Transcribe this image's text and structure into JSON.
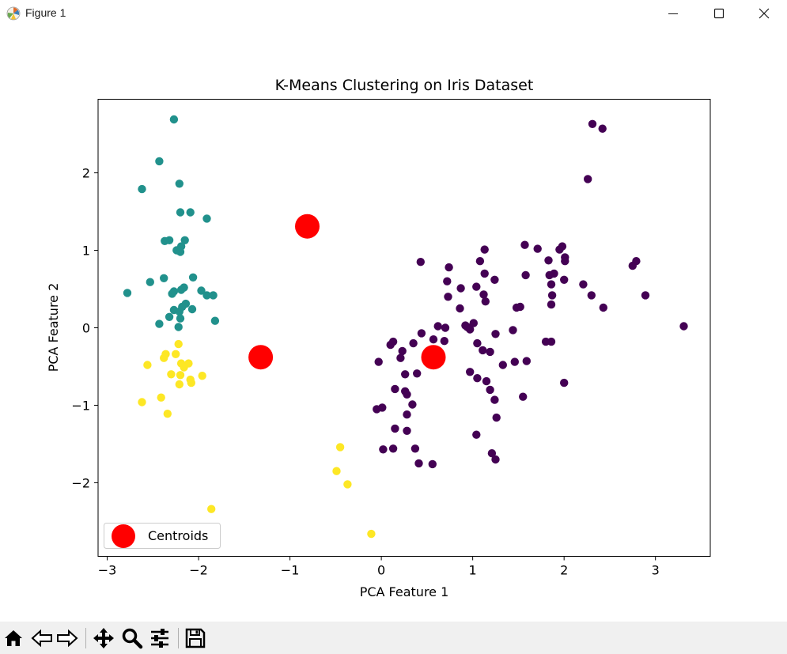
{
  "window": {
    "title": "Figure 1",
    "controls": [
      "minimize",
      "maximize",
      "close"
    ]
  },
  "toolbar": {
    "buttons": [
      "home-icon",
      "back-arrow-icon",
      "forward-arrow-icon",
      "pan-move-icon",
      "zoom-magnifier-icon",
      "configure-subplots-icon",
      "save-floppy-icon"
    ]
  },
  "chart_data": {
    "type": "scatter",
    "title": "K-Means Clustering on Iris Dataset",
    "xlabel": "PCA Feature 1",
    "ylabel": "PCA Feature 2",
    "xlim": [
      -3.1,
      3.6
    ],
    "ylim": [
      -2.95,
      2.95
    ],
    "xticks": [
      -3,
      -2,
      -1,
      0,
      1,
      2,
      3
    ],
    "yticks": [
      -2,
      -1,
      0,
      1,
      2
    ],
    "grid": false,
    "legend": {
      "position": "lower-left",
      "entries": [
        "Centroids"
      ]
    },
    "colors": {
      "cluster_0": "#440154",
      "cluster_1": "#21918c",
      "cluster_2": "#fde725",
      "centroid": "#ff0000"
    },
    "series": [
      {
        "cluster": 0,
        "color": "#440154",
        "points": [
          [
            2.31,
            2.63
          ],
          [
            2.42,
            2.57
          ],
          [
            2.26,
            1.92
          ],
          [
            1.57,
            1.07
          ],
          [
            1.98,
            1.05
          ],
          [
            1.95,
            1.01
          ],
          [
            1.71,
            1.02
          ],
          [
            1.13,
            1.01
          ],
          [
            2.01,
            0.91
          ],
          [
            2.01,
            0.86
          ],
          [
            1.83,
            0.87
          ],
          [
            1.08,
            0.86
          ],
          [
            0.43,
            0.85
          ],
          [
            2.79,
            0.86
          ],
          [
            2.75,
            0.8
          ],
          [
            0.74,
            0.78
          ],
          [
            1.13,
            0.7
          ],
          [
            1.89,
            0.7
          ],
          [
            1.84,
            0.68
          ],
          [
            1.58,
            0.68
          ],
          [
            1.24,
            0.62
          ],
          [
            2.0,
            0.62
          ],
          [
            0.72,
            0.6
          ],
          [
            1.86,
            0.56
          ],
          [
            2.21,
            0.56
          ],
          [
            1.04,
            0.53
          ],
          [
            0.87,
            0.51
          ],
          [
            1.87,
            0.42
          ],
          [
            1.12,
            0.43
          ],
          [
            2.89,
            0.42
          ],
          [
            2.3,
            0.42
          ],
          [
            0.73,
            0.4
          ],
          [
            1.14,
            0.34
          ],
          [
            1.86,
            0.3
          ],
          [
            1.52,
            0.27
          ],
          [
            1.48,
            0.26
          ],
          [
            2.43,
            0.26
          ],
          [
            0.86,
            0.25
          ],
          [
            3.31,
            0.02
          ],
          [
            1.01,
            0.06
          ],
          [
            0.62,
            0.02
          ],
          [
            0.92,
            0.03
          ],
          [
            0.94,
            0.01
          ],
          [
            0.7,
            0.0
          ],
          [
            0.97,
            -0.02
          ],
          [
            1.44,
            -0.03
          ],
          [
            0.44,
            -0.07
          ],
          [
            1.25,
            -0.08
          ],
          [
            0.57,
            -0.15
          ],
          [
            0.69,
            -0.17
          ],
          [
            0.13,
            -0.18
          ],
          [
            0.1,
            -0.22
          ],
          [
            1.05,
            -0.2
          ],
          [
            1.8,
            -0.18
          ],
          [
            1.86,
            -0.18
          ],
          [
            1.11,
            -0.29
          ],
          [
            0.35,
            -0.2
          ],
          [
            1.19,
            -0.31
          ],
          [
            0.23,
            -0.3
          ],
          [
            0.54,
            -0.38
          ],
          [
            0.21,
            -0.39
          ],
          [
            -0.03,
            -0.44
          ],
          [
            1.46,
            -0.44
          ],
          [
            1.59,
            -0.43
          ],
          [
            1.33,
            -0.48
          ],
          [
            0.26,
            -0.6
          ],
          [
            0.39,
            -0.59
          ],
          [
            0.97,
            -0.57
          ],
          [
            1.05,
            -0.65
          ],
          [
            1.15,
            -0.69
          ],
          [
            2.0,
            -0.71
          ],
          [
            0.15,
            -0.79
          ],
          [
            0.26,
            -0.82
          ],
          [
            1.19,
            -0.8
          ],
          [
            0.28,
            -0.86
          ],
          [
            1.24,
            -0.93
          ],
          [
            1.55,
            -0.89
          ],
          [
            0.34,
            -0.99
          ],
          [
            -0.05,
            -1.05
          ],
          [
            0.01,
            -1.03
          ],
          [
            0.28,
            -1.12
          ],
          [
            1.26,
            -1.16
          ],
          [
            0.15,
            -1.3
          ],
          [
            0.28,
            -1.33
          ],
          [
            1.04,
            -1.38
          ],
          [
            0.02,
            -1.57
          ],
          [
            0.13,
            -1.56
          ],
          [
            0.37,
            -1.56
          ],
          [
            1.21,
            -1.62
          ],
          [
            1.25,
            -1.7
          ],
          [
            0.41,
            -1.75
          ],
          [
            0.56,
            -1.76
          ]
        ]
      },
      {
        "cluster": 1,
        "color": "#21918c",
        "points": [
          [
            -2.27,
            2.69
          ],
          [
            -2.43,
            2.15
          ],
          [
            -2.21,
            1.86
          ],
          [
            -2.62,
            1.79
          ],
          [
            -2.2,
            1.49
          ],
          [
            -2.09,
            1.49
          ],
          [
            -1.91,
            1.41
          ],
          [
            -2.15,
            1.13
          ],
          [
            -2.32,
            1.13
          ],
          [
            -2.37,
            1.12
          ],
          [
            -2.19,
            1.05
          ],
          [
            -2.24,
            1.0
          ],
          [
            -2.2,
            0.98
          ],
          [
            -2.06,
            0.65
          ],
          [
            -2.38,
            0.64
          ],
          [
            -2.53,
            0.59
          ],
          [
            -2.16,
            0.52
          ],
          [
            -2.27,
            0.47
          ],
          [
            -2.19,
            0.49
          ],
          [
            -1.97,
            0.48
          ],
          [
            -2.29,
            0.44
          ],
          [
            -2.78,
            0.45
          ],
          [
            -1.91,
            0.42
          ],
          [
            -1.84,
            0.42
          ],
          [
            -2.14,
            0.31
          ],
          [
            -2.18,
            0.27
          ],
          [
            -2.27,
            0.23
          ],
          [
            -2.07,
            0.24
          ],
          [
            -2.21,
            0.21
          ],
          [
            -2.32,
            0.14
          ],
          [
            -2.2,
            0.12
          ],
          [
            -2.43,
            0.05
          ],
          [
            -1.82,
            0.09
          ],
          [
            -2.22,
            0.01
          ]
        ]
      },
      {
        "cluster": 2,
        "color": "#fde725",
        "points": [
          [
            -2.22,
            -0.21
          ],
          [
            -2.25,
            -0.34
          ],
          [
            -2.36,
            -0.34
          ],
          [
            -2.38,
            -0.39
          ],
          [
            -2.56,
            -0.48
          ],
          [
            -2.19,
            -0.46
          ],
          [
            -2.11,
            -0.46
          ],
          [
            -2.16,
            -0.51
          ],
          [
            -2.3,
            -0.6
          ],
          [
            -2.2,
            -0.61
          ],
          [
            -1.96,
            -0.62
          ],
          [
            -2.09,
            -0.67
          ],
          [
            -2.08,
            -0.71
          ],
          [
            -2.21,
            -0.73
          ],
          [
            -2.41,
            -0.9
          ],
          [
            -2.62,
            -0.96
          ],
          [
            -2.34,
            -1.11
          ],
          [
            -0.45,
            -1.54
          ],
          [
            -0.49,
            -1.85
          ],
          [
            -0.37,
            -2.02
          ],
          [
            -1.86,
            -2.34
          ],
          [
            -0.11,
            -2.66
          ]
        ]
      }
    ],
    "centroids": [
      [
        -0.81,
        1.31
      ],
      [
        -1.32,
        -0.38
      ],
      [
        0.57,
        -0.38
      ]
    ]
  }
}
